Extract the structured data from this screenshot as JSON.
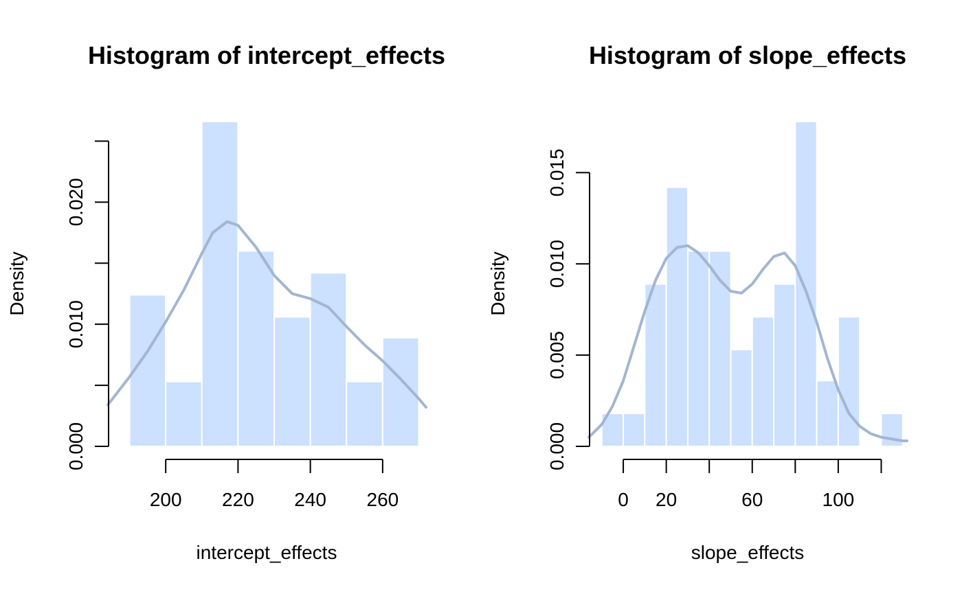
{
  "colors": {
    "bar_fill": "#cce0ff",
    "bar_border": "#ffffff",
    "density_line": "#a3b6d0",
    "axis": "#000000"
  },
  "chart_data": [
    {
      "type": "bar",
      "title": "Histogram of intercept_effects",
      "xlabel": "intercept_effects",
      "ylabel": "Density",
      "bin_edges": [
        190,
        200,
        210,
        220,
        230,
        240,
        250,
        260,
        270
      ],
      "values": [
        0.0124,
        0.0053,
        0.0266,
        0.016,
        0.0106,
        0.0142,
        0.0053,
        0.0089
      ],
      "xlim": [
        184,
        272
      ],
      "ylim": [
        0,
        0.025
      ],
      "x_ticks": [
        200,
        220,
        240,
        260
      ],
      "x_tick_labels": [
        "200",
        "220",
        "240",
        "260"
      ],
      "y_ticks": [
        0,
        0.005,
        0.01,
        0.015,
        0.02,
        0.025
      ],
      "y_tick_labels": [
        "0.000",
        "",
        "0.010",
        "",
        "0.020",
        ""
      ],
      "density_curve": {
        "x": [
          184,
          190,
          195,
          200,
          205,
          210,
          213,
          217,
          220,
          225,
          230,
          235,
          240,
          245,
          250,
          255,
          260,
          265,
          270,
          272
        ],
        "y": [
          0.0034,
          0.0057,
          0.0078,
          0.0102,
          0.0128,
          0.0158,
          0.0175,
          0.0184,
          0.0181,
          0.0163,
          0.014,
          0.0125,
          0.0121,
          0.0114,
          0.0098,
          0.0083,
          0.007,
          0.0055,
          0.0039,
          0.0032
        ]
      },
      "grid": false,
      "legend": "none"
    },
    {
      "type": "bar",
      "title": "Histogram of slope_effects",
      "xlabel": "slope_effects",
      "ylabel": "Density",
      "bin_edges": [
        -10,
        0,
        10,
        20,
        30,
        40,
        50,
        60,
        70,
        80,
        90,
        100,
        110,
        120,
        130
      ],
      "values": [
        0.0018,
        0.0018,
        0.0089,
        0.0142,
        0.0107,
        0.0107,
        0.0053,
        0.0071,
        0.0089,
        0.0178,
        0.0036,
        0.0071,
        0,
        0.0018
      ],
      "xlim": [
        -16,
        132
      ],
      "ylim": [
        0,
        0.015
      ],
      "x_ticks": [
        0,
        20,
        40,
        60,
        80,
        100,
        120
      ],
      "x_tick_labels": [
        "0",
        "20",
        "",
        "60",
        "",
        "100",
        ""
      ],
      "y_ticks": [
        0,
        0.005,
        0.01,
        0.015
      ],
      "y_tick_labels": [
        "0.000",
        "0.005",
        "0.010",
        "0.015"
      ],
      "density_curve": {
        "x": [
          -16,
          -10,
          -5,
          0,
          5,
          10,
          15,
          20,
          25,
          30,
          35,
          40,
          45,
          50,
          55,
          60,
          65,
          70,
          75,
          80,
          85,
          90,
          95,
          100,
          105,
          110,
          115,
          120,
          125,
          130,
          132
        ],
        "y": [
          0.0005,
          0.0012,
          0.0022,
          0.0036,
          0.0055,
          0.0074,
          0.0091,
          0.0103,
          0.0109,
          0.011,
          0.0106,
          0.0099,
          0.0091,
          0.0085,
          0.0084,
          0.0089,
          0.0097,
          0.0104,
          0.0106,
          0.0099,
          0.0085,
          0.0068,
          0.0048,
          0.0031,
          0.0018,
          0.0011,
          0.0007,
          0.0005,
          0.0004,
          0.0003,
          0.0003
        ]
      },
      "grid": false,
      "legend": "none"
    }
  ]
}
